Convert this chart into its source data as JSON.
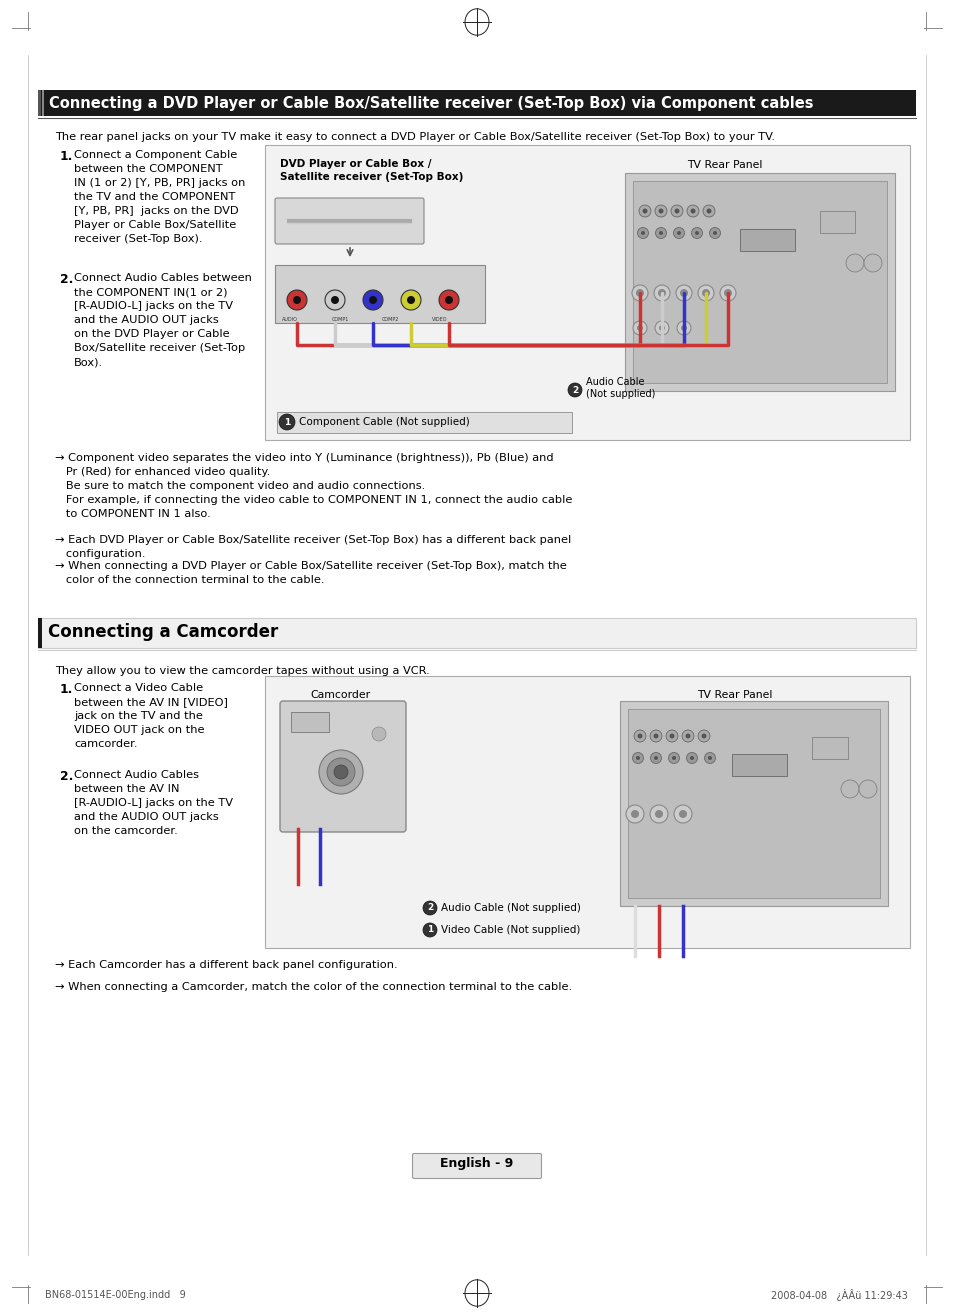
{
  "bg_color": "#ffffff",
  "section1_title": "Connecting a DVD Player or Cable Box/Satellite receiver (Set-Top Box) via Component cables",
  "section1_subtitle": "The rear panel jacks on your TV make it easy to connect a DVD Player or Cable Box/Satellite receiver (Set-Top Box) to your TV.",
  "section1_step1_text": "Connect a Component Cable\nbetween the COMPONENT\nIN (1 or 2) [Y, PB, PR] jacks on\nthe TV and the COMPONENT\n[Y, PB, PR]  jacks on the DVD\nPlayer or Cable Box/Satellite\nreceiver (Set-Top Box).",
  "section1_step2_text": "Connect Audio Cables between\nthe COMPONENT IN(1 or 2)\n[R-AUDIO-L] jacks on the TV\nand the AUDIO OUT jacks\non the DVD Player or Cable\nBox/Satellite receiver (Set-Top\nBox).",
  "section1_note1": "→ Component video separates the video into Y (Luminance (brightness)), Pb (Blue) and\n   Pr (Red) for enhanced video quality.\n   Be sure to match the component video and audio connections.\n   For example, if connecting the video cable to COMPONENT IN 1, connect the audio cable\n   to COMPONENT IN 1 also.",
  "section1_note2": "→ Each DVD Player or Cable Box/Satellite receiver (Set-Top Box) has a different back panel\n   configuration.",
  "section1_note3": "→ When connecting a DVD Player or Cable Box/Satellite receiver (Set-Top Box), match the\n   color of the connection terminal to the cable.",
  "section2_title": "Connecting a Camcorder",
  "section2_subtitle": "They allow you to view the camcorder tapes without using a VCR.",
  "section2_step1_text": "Connect a Video Cable\nbetween the AV IN [VIDEO]\njack on the TV and the\nVIDEO OUT jack on the\ncamcorder.",
  "section2_step2_text": "Connect Audio Cables\nbetween the AV IN\n[R-AUDIO-L] jacks on the TV\nand the AUDIO OUT jacks\non the camcorder.",
  "section2_note1": "→ Each Camcorder has a different back panel configuration.",
  "section2_note2": "→ When connecting a Camcorder, match the color of the connection terminal to the cable.",
  "footer_left": "BN68-01514E-00Eng.indd   9",
  "footer_right": "2008-04-08   ¿ÀÂü 11:29:43",
  "page_number": "English - 9",
  "text_color": "#000000",
  "title1_bg": "#1a1a1a",
  "title1_fg": "#ffffff",
  "title2_bg": "#ffffff",
  "title2_fg": "#000000",
  "diagram_bg": "#f2f2f2",
  "diagram_border": "#aaaaaa",
  "tv_panel_bg": "#cccccc",
  "tv_panel_border": "#999999",
  "cable_box_bg": "#e8e8e8",
  "cable_label_bg": "#e0e0e0",
  "cable_label_border": "#999999"
}
